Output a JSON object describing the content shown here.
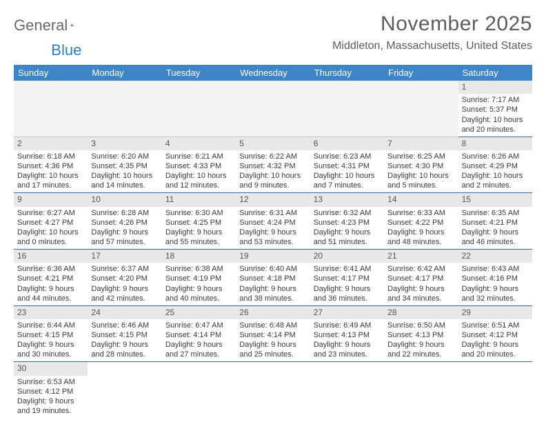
{
  "brand": {
    "word1": "General",
    "word2": "Blue"
  },
  "title": "November 2025",
  "location": "Middleton, Massachusetts, United States",
  "colors": {
    "header_bg": "#3d85c6",
    "header_text": "#ffffff",
    "daynum_bg": "#e8e8e8",
    "border": "#3d6aa3",
    "logo_gray": "#6a6a6a",
    "logo_blue": "#2980b9"
  },
  "daynames": [
    "Sunday",
    "Monday",
    "Tuesday",
    "Wednesday",
    "Thursday",
    "Friday",
    "Saturday"
  ],
  "leading_blanks": 6,
  "days": [
    {
      "n": 1,
      "sr": "7:17 AM",
      "ss": "5:37 PM",
      "dl": "10 hours and 20 minutes."
    },
    {
      "n": 2,
      "sr": "6:18 AM",
      "ss": "4:36 PM",
      "dl": "10 hours and 17 minutes."
    },
    {
      "n": 3,
      "sr": "6:20 AM",
      "ss": "4:35 PM",
      "dl": "10 hours and 14 minutes."
    },
    {
      "n": 4,
      "sr": "6:21 AM",
      "ss": "4:33 PM",
      "dl": "10 hours and 12 minutes."
    },
    {
      "n": 5,
      "sr": "6:22 AM",
      "ss": "4:32 PM",
      "dl": "10 hours and 9 minutes."
    },
    {
      "n": 6,
      "sr": "6:23 AM",
      "ss": "4:31 PM",
      "dl": "10 hours and 7 minutes."
    },
    {
      "n": 7,
      "sr": "6:25 AM",
      "ss": "4:30 PM",
      "dl": "10 hours and 5 minutes."
    },
    {
      "n": 8,
      "sr": "6:26 AM",
      "ss": "4:29 PM",
      "dl": "10 hours and 2 minutes."
    },
    {
      "n": 9,
      "sr": "6:27 AM",
      "ss": "4:27 PM",
      "dl": "10 hours and 0 minutes."
    },
    {
      "n": 10,
      "sr": "6:28 AM",
      "ss": "4:26 PM",
      "dl": "9 hours and 57 minutes."
    },
    {
      "n": 11,
      "sr": "6:30 AM",
      "ss": "4:25 PM",
      "dl": "9 hours and 55 minutes."
    },
    {
      "n": 12,
      "sr": "6:31 AM",
      "ss": "4:24 PM",
      "dl": "9 hours and 53 minutes."
    },
    {
      "n": 13,
      "sr": "6:32 AM",
      "ss": "4:23 PM",
      "dl": "9 hours and 51 minutes."
    },
    {
      "n": 14,
      "sr": "6:33 AM",
      "ss": "4:22 PM",
      "dl": "9 hours and 48 minutes."
    },
    {
      "n": 15,
      "sr": "6:35 AM",
      "ss": "4:21 PM",
      "dl": "9 hours and 46 minutes."
    },
    {
      "n": 16,
      "sr": "6:36 AM",
      "ss": "4:21 PM",
      "dl": "9 hours and 44 minutes."
    },
    {
      "n": 17,
      "sr": "6:37 AM",
      "ss": "4:20 PM",
      "dl": "9 hours and 42 minutes."
    },
    {
      "n": 18,
      "sr": "6:38 AM",
      "ss": "4:19 PM",
      "dl": "9 hours and 40 minutes."
    },
    {
      "n": 19,
      "sr": "6:40 AM",
      "ss": "4:18 PM",
      "dl": "9 hours and 38 minutes."
    },
    {
      "n": 20,
      "sr": "6:41 AM",
      "ss": "4:17 PM",
      "dl": "9 hours and 36 minutes."
    },
    {
      "n": 21,
      "sr": "6:42 AM",
      "ss": "4:17 PM",
      "dl": "9 hours and 34 minutes."
    },
    {
      "n": 22,
      "sr": "6:43 AM",
      "ss": "4:16 PM",
      "dl": "9 hours and 32 minutes."
    },
    {
      "n": 23,
      "sr": "6:44 AM",
      "ss": "4:15 PM",
      "dl": "9 hours and 30 minutes."
    },
    {
      "n": 24,
      "sr": "6:46 AM",
      "ss": "4:15 PM",
      "dl": "9 hours and 28 minutes."
    },
    {
      "n": 25,
      "sr": "6:47 AM",
      "ss": "4:14 PM",
      "dl": "9 hours and 27 minutes."
    },
    {
      "n": 26,
      "sr": "6:48 AM",
      "ss": "4:14 PM",
      "dl": "9 hours and 25 minutes."
    },
    {
      "n": 27,
      "sr": "6:49 AM",
      "ss": "4:13 PM",
      "dl": "9 hours and 23 minutes."
    },
    {
      "n": 28,
      "sr": "6:50 AM",
      "ss": "4:13 PM",
      "dl": "9 hours and 22 minutes."
    },
    {
      "n": 29,
      "sr": "6:51 AM",
      "ss": "4:12 PM",
      "dl": "9 hours and 20 minutes."
    },
    {
      "n": 30,
      "sr": "6:53 AM",
      "ss": "4:12 PM",
      "dl": "9 hours and 19 minutes."
    }
  ],
  "labels": {
    "sunrise": "Sunrise:",
    "sunset": "Sunset:",
    "daylight": "Daylight:"
  }
}
